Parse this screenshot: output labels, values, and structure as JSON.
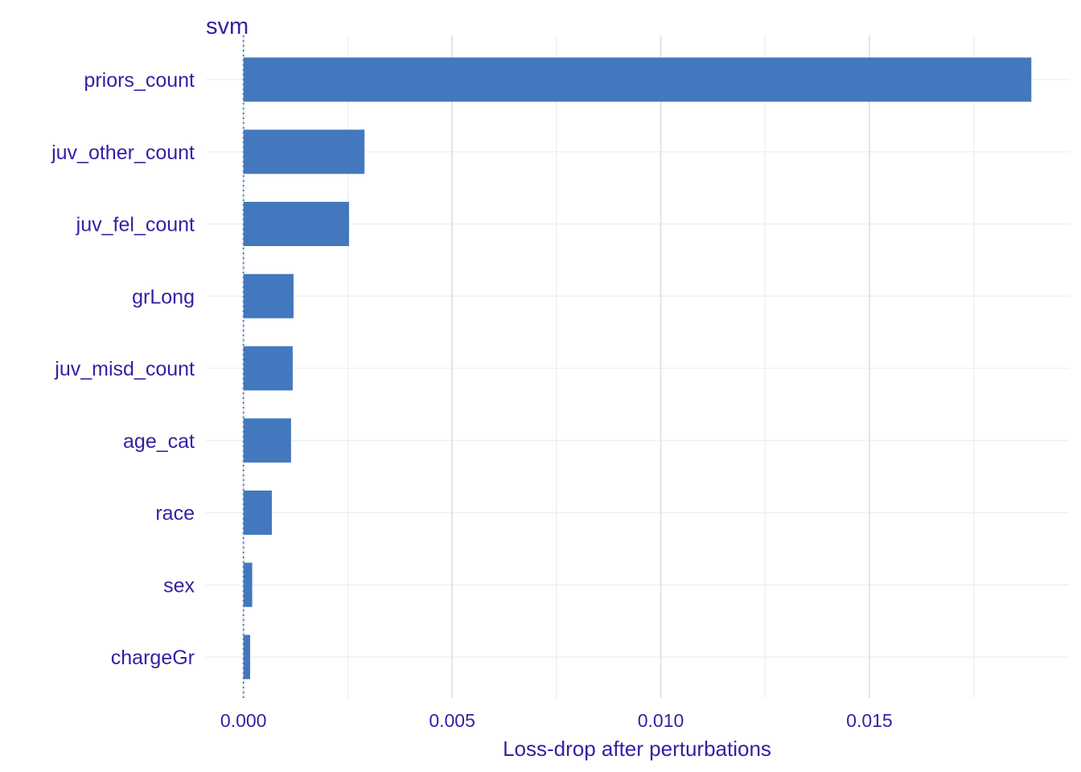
{
  "chart_data": {
    "type": "bar",
    "orientation": "horizontal",
    "panel_title": "svm",
    "xlabel": "Loss-drop after perturbations",
    "ylabel": "",
    "categories": [
      "priors_count",
      "juv_other_count",
      "juv_fel_count",
      "grLong",
      "juv_misd_count",
      "age_cat",
      "race",
      "sex",
      "chargeGr"
    ],
    "values": [
      0.01888,
      0.0029,
      0.00253,
      0.0012,
      0.00118,
      0.00114,
      0.00068,
      0.00021,
      0.00016
    ],
    "xlim": [
      -0.0009,
      0.0198
    ],
    "xticks": [
      0.0,
      0.005,
      0.01,
      0.015
    ],
    "xtick_labels": [
      "0.000",
      "0.005",
      "0.010",
      "0.015"
    ],
    "baseline": 0.0,
    "grid": true,
    "bar_color": "#4378bf",
    "text_color": "#371ea3"
  }
}
